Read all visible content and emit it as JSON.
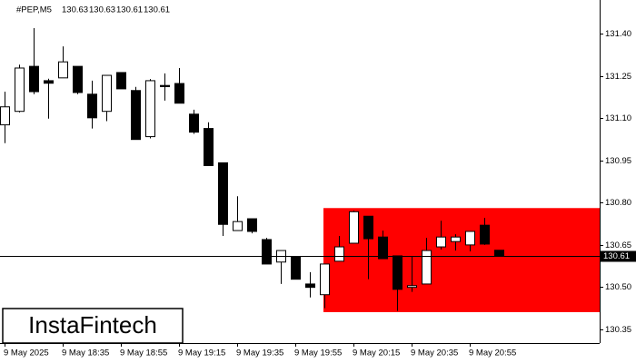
{
  "chart_data": {
    "type": "candlestick",
    "title": "#PEP,M5",
    "categories": [
      "9 May 2025",
      null,
      null,
      null,
      "9 May 18:35",
      null,
      null,
      null,
      "9 May 18:55",
      null,
      null,
      null,
      "9 May 19:15",
      null,
      null,
      null,
      "9 May 19:35",
      null,
      null,
      null,
      "9 May 19:55",
      null,
      null,
      null,
      "9 May 20:15",
      null,
      null,
      null,
      "9 May 20:35",
      null,
      null,
      null,
      "9 May 20:55",
      null,
      null
    ],
    "open": [
      131.076,
      131.124,
      131.284,
      131.233,
      131.243,
      131.284,
      131.185,
      131.124,
      131.262,
      131.198,
      131.034,
      131.216,
      131.223,
      131.114,
      131.063,
      130.941,
      130.7,
      130.742,
      130.668,
      130.588,
      130.607,
      130.51,
      130.472,
      130.591,
      130.655,
      130.751,
      130.677,
      130.61,
      130.498,
      130.51,
      130.642,
      130.661,
      130.649,
      130.719,
      130.63
    ],
    "high": [
      131.194,
      131.29,
      131.42,
      131.24,
      131.355,
      131.284,
      131.233,
      131.252,
      131.262,
      131.211,
      131.239,
      131.259,
      131.278,
      131.13,
      131.085,
      130.941,
      130.822,
      130.742,
      130.674,
      130.629,
      130.607,
      130.552,
      130.581,
      130.681,
      130.771,
      130.751,
      130.7,
      130.61,
      130.61,
      130.674,
      130.735,
      130.687,
      130.697,
      130.745,
      130.63
    ],
    "low": [
      131.011,
      131.12,
      131.185,
      131.098,
      131.243,
      131.185,
      131.063,
      131.089,
      131.204,
      131.024,
      131.028,
      131.162,
      131.153,
      131.044,
      130.931,
      130.681,
      130.7,
      130.69,
      130.581,
      130.51,
      130.527,
      130.462,
      130.424,
      130.591,
      130.655,
      130.527,
      130.6,
      130.414,
      130.482,
      130.51,
      130.633,
      130.629,
      130.626,
      130.649,
      130.61
    ],
    "close": [
      131.14,
      131.278,
      131.194,
      131.224,
      131.3,
      131.191,
      131.101,
      131.252,
      131.204,
      131.024,
      131.233,
      131.212,
      131.153,
      131.05,
      130.931,
      130.722,
      130.732,
      130.697,
      130.581,
      130.629,
      130.527,
      130.498,
      130.581,
      130.642,
      130.767,
      130.671,
      130.6,
      130.491,
      130.504,
      130.629,
      130.677,
      130.677,
      130.697,
      130.652,
      130.61
    ],
    "up_color": "#ffffff",
    "down_color": "#000000",
    "ylim": [
      130.3,
      131.52
    ],
    "yticks": [
      {
        "value": 131.4,
        "label": "131.40"
      },
      131.25,
      {
        "value": 131.1,
        "label": "131.10"
      },
      130.95,
      {
        "value": 130.8,
        "label": "130.80"
      },
      130.65,
      {
        "value": 130.5,
        "label": "130.50"
      },
      130.35
    ],
    "zone": {
      "from": 22,
      "high": 130.78,
      "low": 130.41,
      "color": "#ff0000"
    }
  },
  "watermark": "InstaFintech"
}
